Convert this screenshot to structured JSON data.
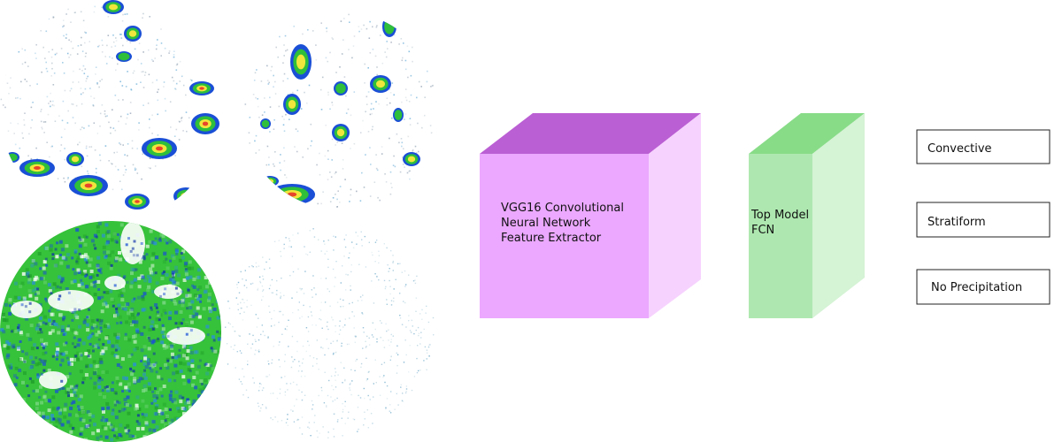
{
  "vgg_block": {
    "lines": [
      "VGG16 Convolutional",
      "Neural Network",
      "Feature Extractor"
    ],
    "front_color": "#eba8fe",
    "top_color": "#bb5fd4",
    "side_color": "#f6d2fe"
  },
  "fcn_block": {
    "lines": [
      "Top Model",
      "FCN"
    ],
    "front_color": "#aee8b0",
    "top_color": "#88dc88",
    "side_color": "#d5f3d5"
  },
  "outputs": [
    {
      "label": "Convective"
    },
    {
      "label": "Stratiform"
    },
    {
      "label": "No Precipitation"
    }
  ],
  "radar_images": [
    {
      "name": "radar-image-top-left",
      "palette": [
        "#1a4fd6",
        "#2fbf3a",
        "#f0e63c",
        "#e8442c"
      ]
    },
    {
      "name": "radar-image-top-right",
      "palette": [
        "#1a4fd6",
        "#2fbf3a",
        "#f0e63c",
        "#e8442c"
      ]
    },
    {
      "name": "radar-image-bottom-left",
      "palette": [
        "#1a4fd6",
        "#3ec93e",
        "#ffffff",
        "#8fd3ff"
      ]
    },
    {
      "name": "radar-image-bottom-right",
      "palette": [
        "#6aa8c8",
        "#9ec5d6",
        "#c0d8e0"
      ]
    }
  ]
}
